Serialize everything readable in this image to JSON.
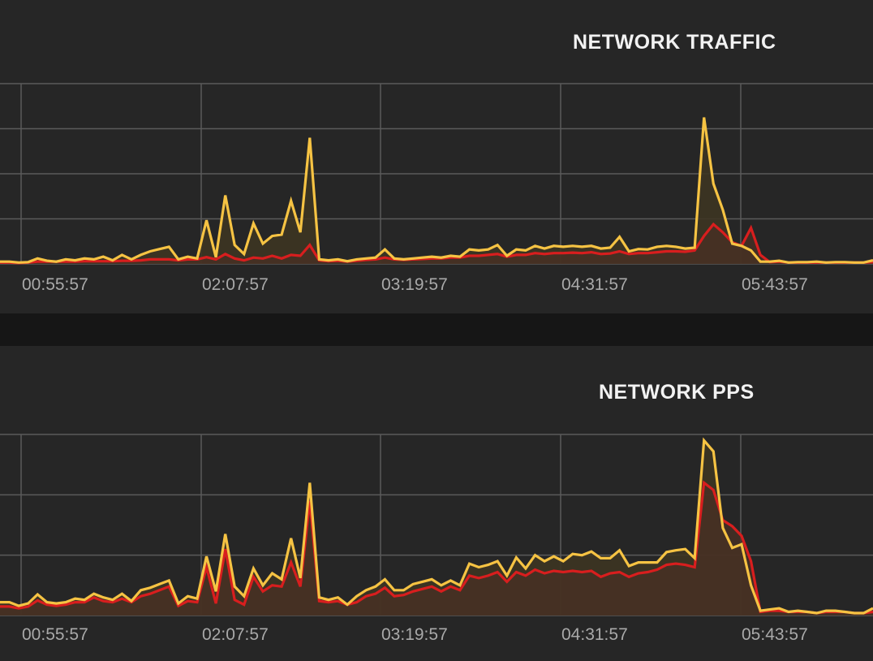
{
  "panels": [
    {
      "title": "NETWORK TRAFFIC"
    },
    {
      "title": "NETWORK PPS"
    }
  ],
  "colors": {
    "background": "#262626",
    "separator": "#161616",
    "grid": "#5a5a5a",
    "series_yellow": "#f6c343",
    "series_red": "#d81e1e",
    "fill_yellow": "#3d3522",
    "fill_red": "#4a3024"
  },
  "chart_data": [
    {
      "type": "area",
      "title": "NETWORK TRAFFIC",
      "xlabel": "",
      "ylabel": "",
      "x_tick_labels": [
        "00:55:57",
        "02:07:57",
        "03:19:57",
        "04:31:57",
        "05:43:57"
      ],
      "grid": true,
      "ylim": [
        0,
        4
      ],
      "series": [
        {
          "color": "#f6c343",
          "values": [
            0.05,
            0.05,
            0.03,
            0.04,
            0.12,
            0.07,
            0.05,
            0.1,
            0.08,
            0.12,
            0.1,
            0.16,
            0.08,
            0.2,
            0.1,
            0.2,
            0.28,
            0.33,
            0.38,
            0.1,
            0.16,
            0.12,
            0.97,
            0.15,
            1.52,
            0.42,
            0.22,
            0.9,
            0.45,
            0.62,
            0.65,
            1.4,
            0.7,
            2.8,
            0.1,
            0.08,
            0.1,
            0.06,
            0.1,
            0.12,
            0.14,
            0.32,
            0.12,
            0.1,
            0.12,
            0.14,
            0.16,
            0.14,
            0.18,
            0.16,
            0.32,
            0.3,
            0.32,
            0.42,
            0.18,
            0.32,
            0.3,
            0.4,
            0.34,
            0.4,
            0.38,
            0.4,
            0.38,
            0.4,
            0.34,
            0.36,
            0.6,
            0.28,
            0.33,
            0.32,
            0.38,
            0.4,
            0.38,
            0.34,
            0.36,
            3.25,
            1.78,
            1.2,
            0.45,
            0.4,
            0.3,
            0.05,
            0.05,
            0.07,
            0.03,
            0.04,
            0.04,
            0.05,
            0.03,
            0.04,
            0.04,
            0.03,
            0.03,
            0.08
          ]
        },
        {
          "color": "#d81e1e",
          "values": [
            0.03,
            0.03,
            0.02,
            0.03,
            0.05,
            0.05,
            0.05,
            0.05,
            0.05,
            0.06,
            0.06,
            0.06,
            0.06,
            0.07,
            0.07,
            0.08,
            0.1,
            0.1,
            0.1,
            0.08,
            0.1,
            0.1,
            0.15,
            0.1,
            0.22,
            0.12,
            0.08,
            0.14,
            0.12,
            0.18,
            0.12,
            0.2,
            0.18,
            0.42,
            0.08,
            0.06,
            0.07,
            0.05,
            0.07,
            0.09,
            0.1,
            0.14,
            0.1,
            0.09,
            0.1,
            0.11,
            0.12,
            0.12,
            0.14,
            0.14,
            0.18,
            0.18,
            0.2,
            0.22,
            0.16,
            0.2,
            0.2,
            0.24,
            0.22,
            0.24,
            0.24,
            0.25,
            0.24,
            0.26,
            0.22,
            0.23,
            0.28,
            0.22,
            0.24,
            0.24,
            0.26,
            0.28,
            0.28,
            0.27,
            0.3,
            0.62,
            0.88,
            0.7,
            0.48,
            0.4,
            0.8,
            0.2,
            0.04,
            0.05,
            0.03,
            0.03,
            0.03,
            0.03,
            0.03,
            0.03,
            0.03,
            0.03,
            0.03,
            0.04
          ]
        }
      ]
    },
    {
      "type": "area",
      "title": "NETWORK PPS",
      "xlabel": "",
      "ylabel": "",
      "x_tick_labels": [
        "00:55:57",
        "02:07:57",
        "03:19:57",
        "04:31:57",
        "05:43:57"
      ],
      "grid": true,
      "ylim": [
        0,
        3
      ],
      "series": [
        {
          "color": "#f6c343",
          "values": [
            0.22,
            0.22,
            0.16,
            0.2,
            0.35,
            0.22,
            0.2,
            0.22,
            0.28,
            0.26,
            0.36,
            0.3,
            0.26,
            0.36,
            0.24,
            0.42,
            0.46,
            0.52,
            0.58,
            0.2,
            0.32,
            0.28,
            0.98,
            0.4,
            1.35,
            0.48,
            0.32,
            0.78,
            0.5,
            0.7,
            0.6,
            1.28,
            0.62,
            2.2,
            0.3,
            0.26,
            0.3,
            0.18,
            0.32,
            0.42,
            0.48,
            0.6,
            0.42,
            0.42,
            0.52,
            0.56,
            0.6,
            0.5,
            0.58,
            0.5,
            0.86,
            0.8,
            0.84,
            0.9,
            0.66,
            0.96,
            0.78,
            1.0,
            0.9,
            0.98,
            0.9,
            1.02,
            1.0,
            1.06,
            0.95,
            0.95,
            1.08,
            0.82,
            0.88,
            0.88,
            0.88,
            1.05,
            1.08,
            1.1,
            0.95,
            2.9,
            2.72,
            1.45,
            1.12,
            1.18,
            0.5,
            0.08,
            0.1,
            0.12,
            0.06,
            0.08,
            0.06,
            0.04,
            0.08,
            0.08,
            0.06,
            0.04,
            0.04,
            0.12
          ]
        },
        {
          "color": "#d81e1e",
          "values": [
            0.15,
            0.15,
            0.12,
            0.15,
            0.25,
            0.18,
            0.16,
            0.18,
            0.22,
            0.22,
            0.3,
            0.24,
            0.22,
            0.28,
            0.22,
            0.32,
            0.36,
            0.42,
            0.48,
            0.16,
            0.24,
            0.22,
            0.8,
            0.2,
            1.1,
            0.26,
            0.18,
            0.64,
            0.4,
            0.5,
            0.48,
            0.88,
            0.48,
            1.9,
            0.24,
            0.22,
            0.24,
            0.18,
            0.22,
            0.32,
            0.36,
            0.46,
            0.32,
            0.34,
            0.4,
            0.44,
            0.48,
            0.4,
            0.48,
            0.42,
            0.66,
            0.62,
            0.66,
            0.72,
            0.56,
            0.72,
            0.66,
            0.76,
            0.7,
            0.74,
            0.72,
            0.74,
            0.72,
            0.74,
            0.64,
            0.7,
            0.72,
            0.64,
            0.7,
            0.72,
            0.76,
            0.84,
            0.86,
            0.84,
            0.8,
            2.2,
            2.08,
            1.58,
            1.48,
            1.32,
            0.9,
            0.06,
            0.08,
            0.08,
            0.06,
            0.06,
            0.06,
            0.04,
            0.06,
            0.06,
            0.06,
            0.04,
            0.04,
            0.06
          ]
        }
      ]
    }
  ]
}
